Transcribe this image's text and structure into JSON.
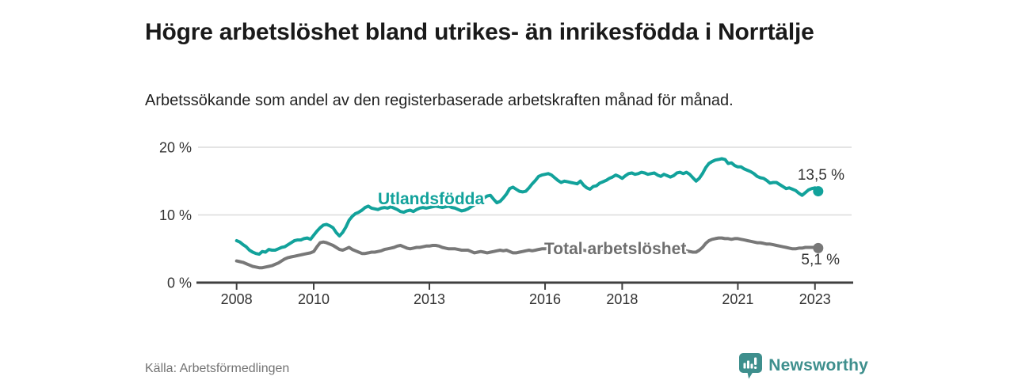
{
  "header": {
    "title": "Högre arbetslöshet bland utrikes- än inrikesfödda i Norrtälje",
    "subtitle": "Arbetssökande som andel av den registerbaserade arbetskraften månad för månad."
  },
  "footer": {
    "source": "Källa: Arbetsförmedlingen",
    "brand": "Newsworthy"
  },
  "colors": {
    "accent_teal": "#12a29b",
    "series_gray": "#787878",
    "logo_teal": "#3e8f8d",
    "grid": "#dcdcdc",
    "axis": "#404040",
    "tick_text": "#333333"
  },
  "chart_data": {
    "type": "line",
    "title": "Högre arbetslöshet bland utrikes- än inrikesfödda i Norrtälje",
    "subtitle": "Arbetssökande som andel av den registerbaserade arbetskraften månad för månad",
    "unit": "%",
    "x_start_year": 2008,
    "x_step_months": 1,
    "xlim": [
      2007.0,
      2023.95
    ],
    "ylim": [
      0,
      20
    ],
    "grid": "horizontal",
    "legend": "inline-labels",
    "xticks": [
      2008,
      2010,
      2013,
      2016,
      2018,
      2021,
      2023
    ],
    "xtick_labels": [
      "2008",
      "2010",
      "2013",
      "2016",
      "2018",
      "2021",
      "2023"
    ],
    "yticks": [
      0,
      10,
      20
    ],
    "ytick_labels": [
      "0 %",
      "10 %",
      "20 %"
    ],
    "series": [
      {
        "name": "Utlandsfödda",
        "color": "#12a29b",
        "end_label": "13,5 %",
        "end_value": 13.5,
        "values": [
          6.2,
          6.0,
          5.6,
          5.3,
          4.8,
          4.5,
          4.3,
          4.2,
          4.6,
          4.5,
          4.9,
          4.8,
          4.8,
          5.0,
          5.2,
          5.3,
          5.6,
          5.9,
          6.2,
          6.3,
          6.3,
          6.5,
          6.6,
          6.4,
          7.0,
          7.6,
          8.1,
          8.5,
          8.6,
          8.4,
          8.1,
          7.4,
          6.9,
          7.4,
          8.2,
          9.2,
          9.8,
          10.2,
          10.4,
          10.7,
          11.1,
          11.3,
          11.0,
          10.9,
          10.8,
          11.0,
          11.1,
          11.0,
          11.2,
          11.0,
          10.8,
          10.5,
          10.4,
          10.6,
          10.7,
          10.5,
          10.8,
          11.0,
          11.1,
          11.0,
          11.1,
          11.2,
          11.3,
          11.2,
          11.1,
          11.2,
          11.3,
          11.1,
          11.0,
          10.8,
          10.6,
          10.7,
          10.9,
          11.2,
          11.5,
          11.8,
          12.1,
          12.5,
          12.8,
          12.9,
          12.3,
          11.8,
          12.0,
          12.5,
          13.1,
          13.9,
          14.1,
          13.8,
          13.5,
          13.4,
          13.5,
          14.0,
          14.6,
          15.1,
          15.7,
          15.9,
          16.0,
          16.1,
          15.9,
          15.5,
          15.1,
          14.8,
          15.0,
          14.9,
          14.8,
          14.7,
          14.6,
          15.0,
          14.4,
          14.0,
          13.8,
          14.2,
          14.3,
          14.7,
          14.9,
          15.1,
          15.4,
          15.6,
          15.9,
          15.7,
          15.4,
          15.8,
          16.1,
          16.2,
          16.0,
          16.1,
          16.3,
          16.2,
          16.0,
          16.1,
          16.2,
          15.9,
          15.7,
          16.0,
          15.8,
          15.6,
          15.8,
          16.2,
          16.3,
          16.1,
          16.3,
          16.0,
          15.5,
          15.0,
          15.4,
          16.1,
          17.0,
          17.6,
          17.9,
          18.1,
          18.2,
          18.3,
          18.2,
          17.6,
          17.7,
          17.3,
          17.1,
          17.1,
          16.8,
          16.6,
          16.4,
          16.1,
          15.7,
          15.5,
          15.4,
          15.1,
          14.7,
          14.8,
          14.8,
          14.5,
          14.2,
          13.9,
          14.0,
          13.8,
          13.6,
          13.2,
          12.9,
          13.3,
          13.7,
          13.9,
          14.0,
          13.5
        ]
      },
      {
        "name": "Total arbetslöshet",
        "color": "#787878",
        "end_label": "5,1 %",
        "end_value": 5.1,
        "values": [
          3.2,
          3.1,
          3.0,
          2.8,
          2.6,
          2.4,
          2.3,
          2.2,
          2.2,
          2.3,
          2.4,
          2.5,
          2.7,
          2.9,
          3.2,
          3.5,
          3.7,
          3.8,
          3.9,
          4.0,
          4.1,
          4.2,
          4.3,
          4.4,
          4.6,
          5.3,
          5.9,
          6.0,
          5.9,
          5.7,
          5.5,
          5.2,
          4.9,
          4.8,
          5.0,
          5.2,
          4.9,
          4.7,
          4.5,
          4.3,
          4.3,
          4.4,
          4.5,
          4.5,
          4.6,
          4.7,
          4.9,
          5.0,
          5.1,
          5.2,
          5.4,
          5.5,
          5.3,
          5.1,
          5.0,
          5.1,
          5.2,
          5.2,
          5.3,
          5.4,
          5.4,
          5.5,
          5.5,
          5.4,
          5.2,
          5.1,
          5.0,
          5.0,
          5.0,
          4.9,
          4.8,
          4.8,
          4.8,
          4.6,
          4.4,
          4.5,
          4.6,
          4.5,
          4.4,
          4.5,
          4.6,
          4.7,
          4.8,
          4.7,
          4.8,
          4.6,
          4.4,
          4.4,
          4.5,
          4.6,
          4.7,
          4.8,
          4.7,
          4.8,
          4.9,
          5.0,
          5.0,
          5.1,
          5.0,
          4.9,
          4.8,
          4.8,
          4.9,
          4.8,
          4.7,
          4.7,
          4.8,
          4.9,
          4.8,
          4.7,
          4.6,
          4.7,
          4.8,
          4.9,
          5.0,
          4.9,
          4.8,
          4.8,
          4.9,
          4.8,
          4.7,
          4.6,
          4.5,
          4.6,
          4.7,
          4.8,
          4.9,
          4.8,
          4.7,
          4.6,
          4.6,
          4.5,
          4.5,
          4.6,
          4.5,
          4.4,
          4.5,
          4.6,
          4.7,
          4.6,
          4.7,
          4.6,
          4.5,
          4.5,
          4.8,
          5.2,
          5.8,
          6.2,
          6.4,
          6.5,
          6.6,
          6.6,
          6.5,
          6.5,
          6.4,
          6.5,
          6.5,
          6.4,
          6.3,
          6.2,
          6.1,
          6.0,
          5.9,
          5.9,
          5.8,
          5.7,
          5.7,
          5.6,
          5.5,
          5.4,
          5.3,
          5.2,
          5.1,
          5.0,
          5.0,
          5.1,
          5.1,
          5.2,
          5.2,
          5.2,
          5.2,
          5.1
        ]
      }
    ]
  }
}
